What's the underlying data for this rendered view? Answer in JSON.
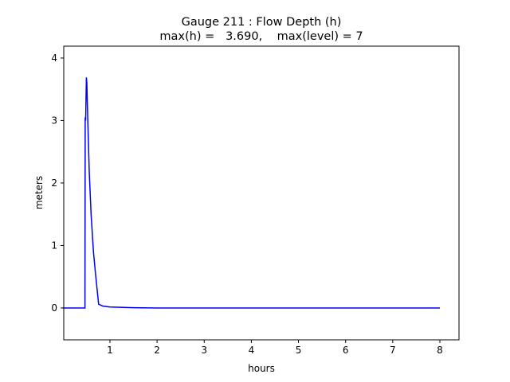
{
  "chart_data": {
    "type": "line",
    "title": [
      "Gauge 211 : Flow Depth (h)",
      "max(h) =   3.690,    max(level) = 7"
    ],
    "x_label": "hours",
    "y_label": "meters",
    "xlim": [
      0.02,
      8.406
    ],
    "ylim": [
      -0.51,
      4.19
    ],
    "xticks": [
      1,
      2,
      3,
      4,
      5,
      6,
      7,
      8
    ],
    "yticks": [
      0,
      1,
      2,
      3,
      4
    ],
    "series": [
      {
        "color": "#0000ff",
        "x": [
          0,
          0.47,
          0.475,
          0.485,
          0.5,
          0.51,
          0.53,
          0.56,
          0.6,
          0.65,
          0.7,
          0.76,
          0.85,
          1.0,
          1.5,
          2,
          8
        ],
        "values": [
          0,
          0,
          3.05,
          3.0,
          3.69,
          3.6,
          3.0,
          2.2,
          1.5,
          0.9,
          0.5,
          0.06,
          0.03,
          0.015,
          0.005,
          0,
          0
        ]
      }
    ]
  }
}
